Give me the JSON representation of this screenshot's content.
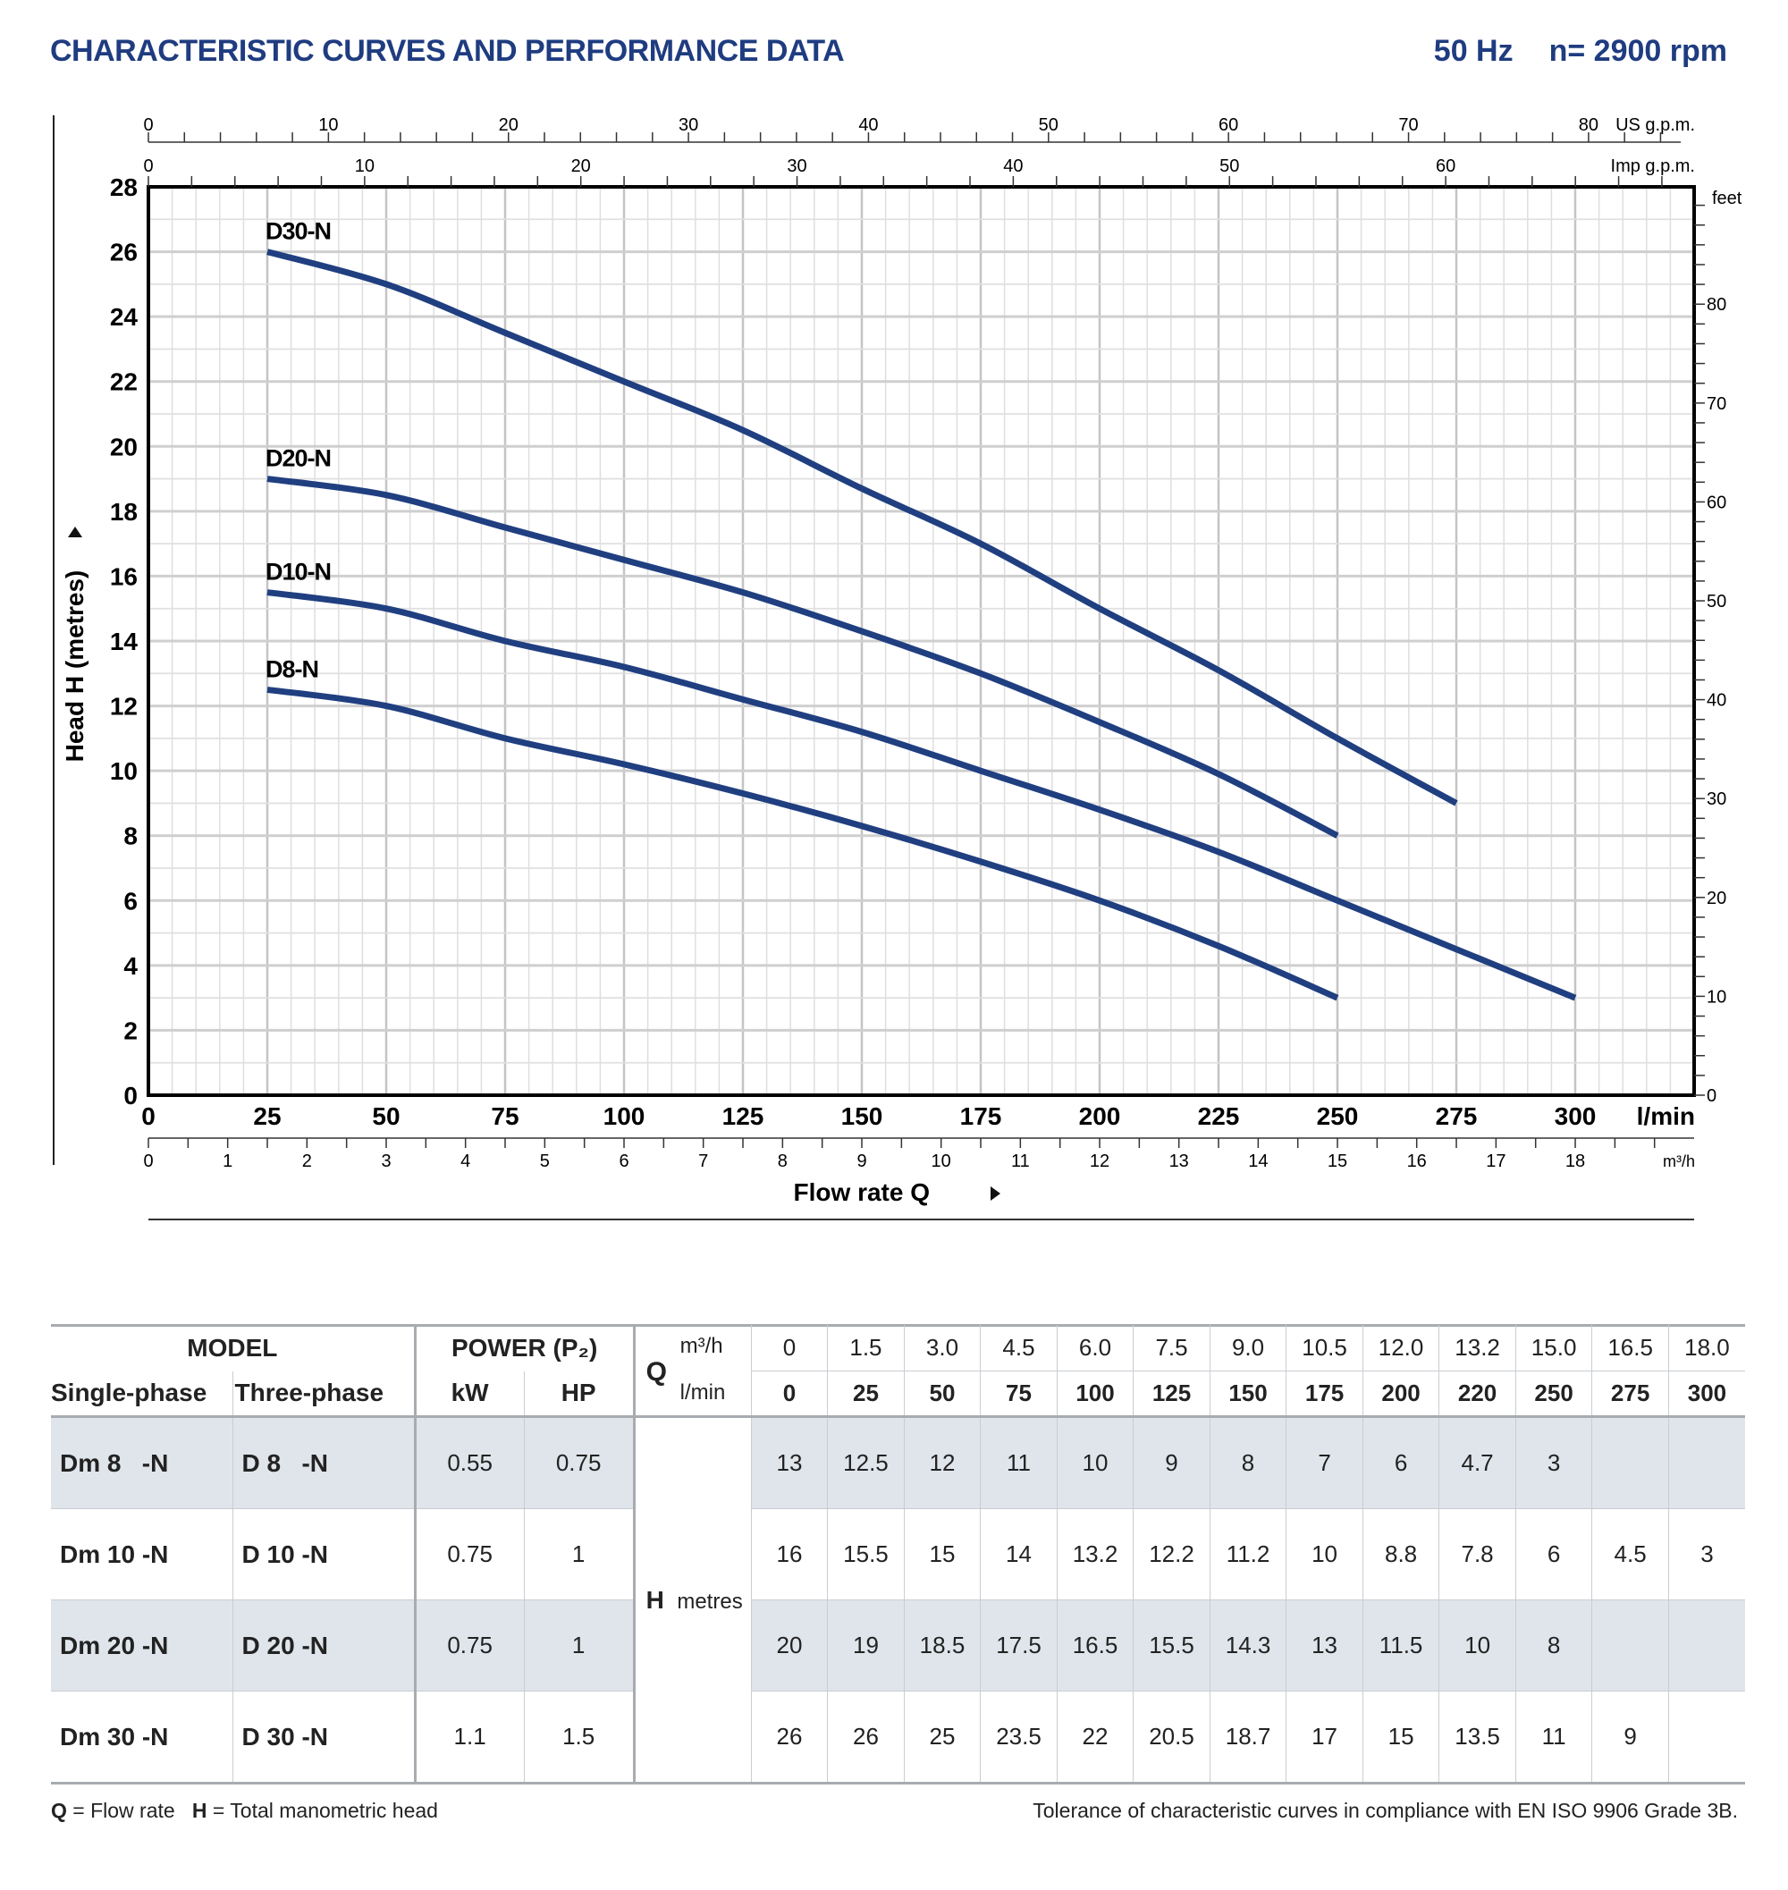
{
  "header": {
    "title": "CHARACTERISTIC CURVES AND PERFORMANCE DATA",
    "frequency": "50 Hz",
    "speed": "n= 2900 rpm"
  },
  "chart_data": {
    "type": "line",
    "xlabel": "Flow rate Q",
    "xunit": "l/min",
    "ylabel": "Head H (metres)",
    "xlim": [
      0,
      325
    ],
    "ylim": [
      0,
      28
    ],
    "x_ticks": [
      0,
      25,
      50,
      75,
      100,
      125,
      150,
      175,
      200,
      225,
      250,
      275,
      300
    ],
    "y_ticks": [
      0,
      2,
      4,
      6,
      8,
      10,
      12,
      14,
      16,
      18,
      20,
      22,
      24,
      26,
      28
    ],
    "grid": true,
    "secondary_axes": {
      "us_gpm": {
        "label": "US g.p.m.",
        "ticks": [
          0,
          10,
          20,
          30,
          40,
          50,
          60,
          70,
          80
        ]
      },
      "imp_gpm": {
        "label": "Imp g.p.m.",
        "ticks": [
          0,
          10,
          20,
          30,
          40,
          50,
          60
        ]
      },
      "m3h": {
        "label": "m³/h",
        "ticks": [
          0,
          1,
          2,
          3,
          4,
          5,
          6,
          7,
          8,
          9,
          10,
          11,
          12,
          13,
          14,
          15,
          16,
          17,
          18
        ]
      },
      "feet": {
        "label": "feet",
        "ticks": [
          0,
          10,
          20,
          30,
          40,
          50,
          60,
          70,
          80
        ]
      }
    },
    "series": [
      {
        "name": "D30-N",
        "x": [
          25,
          50,
          75,
          100,
          125,
          150,
          175,
          200,
          225,
          250,
          275
        ],
        "y": [
          26,
          25,
          23.5,
          22,
          20.5,
          18.7,
          17,
          15,
          13.1,
          11,
          9
        ]
      },
      {
        "name": "D20-N",
        "x": [
          25,
          50,
          75,
          100,
          125,
          150,
          175,
          200,
          225,
          250
        ],
        "y": [
          19,
          18.5,
          17.5,
          16.5,
          15.5,
          14.3,
          13,
          11.5,
          9.9,
          8
        ]
      },
      {
        "name": "D10-N",
        "x": [
          25,
          50,
          75,
          100,
          125,
          150,
          175,
          200,
          225,
          250,
          275,
          300
        ],
        "y": [
          15.5,
          15,
          14,
          13.2,
          12.2,
          11.2,
          10,
          8.8,
          7.5,
          6,
          4.5,
          3
        ]
      },
      {
        "name": "D8-N",
        "x": [
          25,
          50,
          75,
          100,
          125,
          150,
          175,
          200,
          225,
          250
        ],
        "y": [
          12.5,
          12,
          11,
          10.2,
          9.3,
          8.3,
          7.2,
          6,
          4.6,
          3
        ]
      }
    ],
    "line_color": "#203f80"
  },
  "table": {
    "model_header": "MODEL",
    "power_header": "POWER (P₂)",
    "single_phase": "Single-phase",
    "three_phase": "Three-phase",
    "kw": "kW",
    "hp": "HP",
    "q_label": "Q",
    "m3h_unit": "m³/h",
    "lmin_unit": "l/min",
    "h_label": "H",
    "h_unit": "metres",
    "m3h": [
      "0",
      "1.5",
      "3.0",
      "4.5",
      "6.0",
      "7.5",
      "9.0",
      "10.5",
      "12.0",
      "13.2",
      "15.0",
      "16.5",
      "18.0"
    ],
    "lmin": [
      "0",
      "25",
      "50",
      "75",
      "100",
      "125",
      "150",
      "175",
      "200",
      "220",
      "250",
      "275",
      "300"
    ],
    "rows": [
      {
        "single": "Dm 8   -N",
        "three": "D 8   -N",
        "kw": "0.55",
        "hp": "0.75",
        "h": [
          "13",
          "12.5",
          "12",
          "11",
          "10",
          "9",
          "8",
          "7",
          "6",
          "4.7",
          "3",
          "",
          ""
        ]
      },
      {
        "single": "Dm 10 -N",
        "three": "D 10 -N",
        "kw": "0.75",
        "hp": "1",
        "h": [
          "16",
          "15.5",
          "15",
          "14",
          "13.2",
          "12.2",
          "11.2",
          "10",
          "8.8",
          "7.8",
          "6",
          "4.5",
          "3"
        ]
      },
      {
        "single": "Dm 20 -N",
        "three": "D 20 -N",
        "kw": "0.75",
        "hp": "1",
        "h": [
          "20",
          "19",
          "18.5",
          "17.5",
          "16.5",
          "15.5",
          "14.3",
          "13",
          "11.5",
          "10",
          "8",
          "",
          ""
        ]
      },
      {
        "single": "Dm 30 -N",
        "three": "D 30 -N",
        "kw": "1.1",
        "hp": "1.5",
        "h": [
          "26",
          "26",
          "25",
          "23.5",
          "22",
          "20.5",
          "18.7",
          "17",
          "15",
          "13.5",
          "11",
          "9",
          ""
        ]
      }
    ]
  },
  "footnotes": {
    "q_key": "Q",
    "q_text": " = Flow rate",
    "h_key": "H",
    "h_text": " = Total manometric head",
    "tolerance": "Tolerance of characteristic curves in compliance with EN ISO 9906 Grade 3B."
  }
}
